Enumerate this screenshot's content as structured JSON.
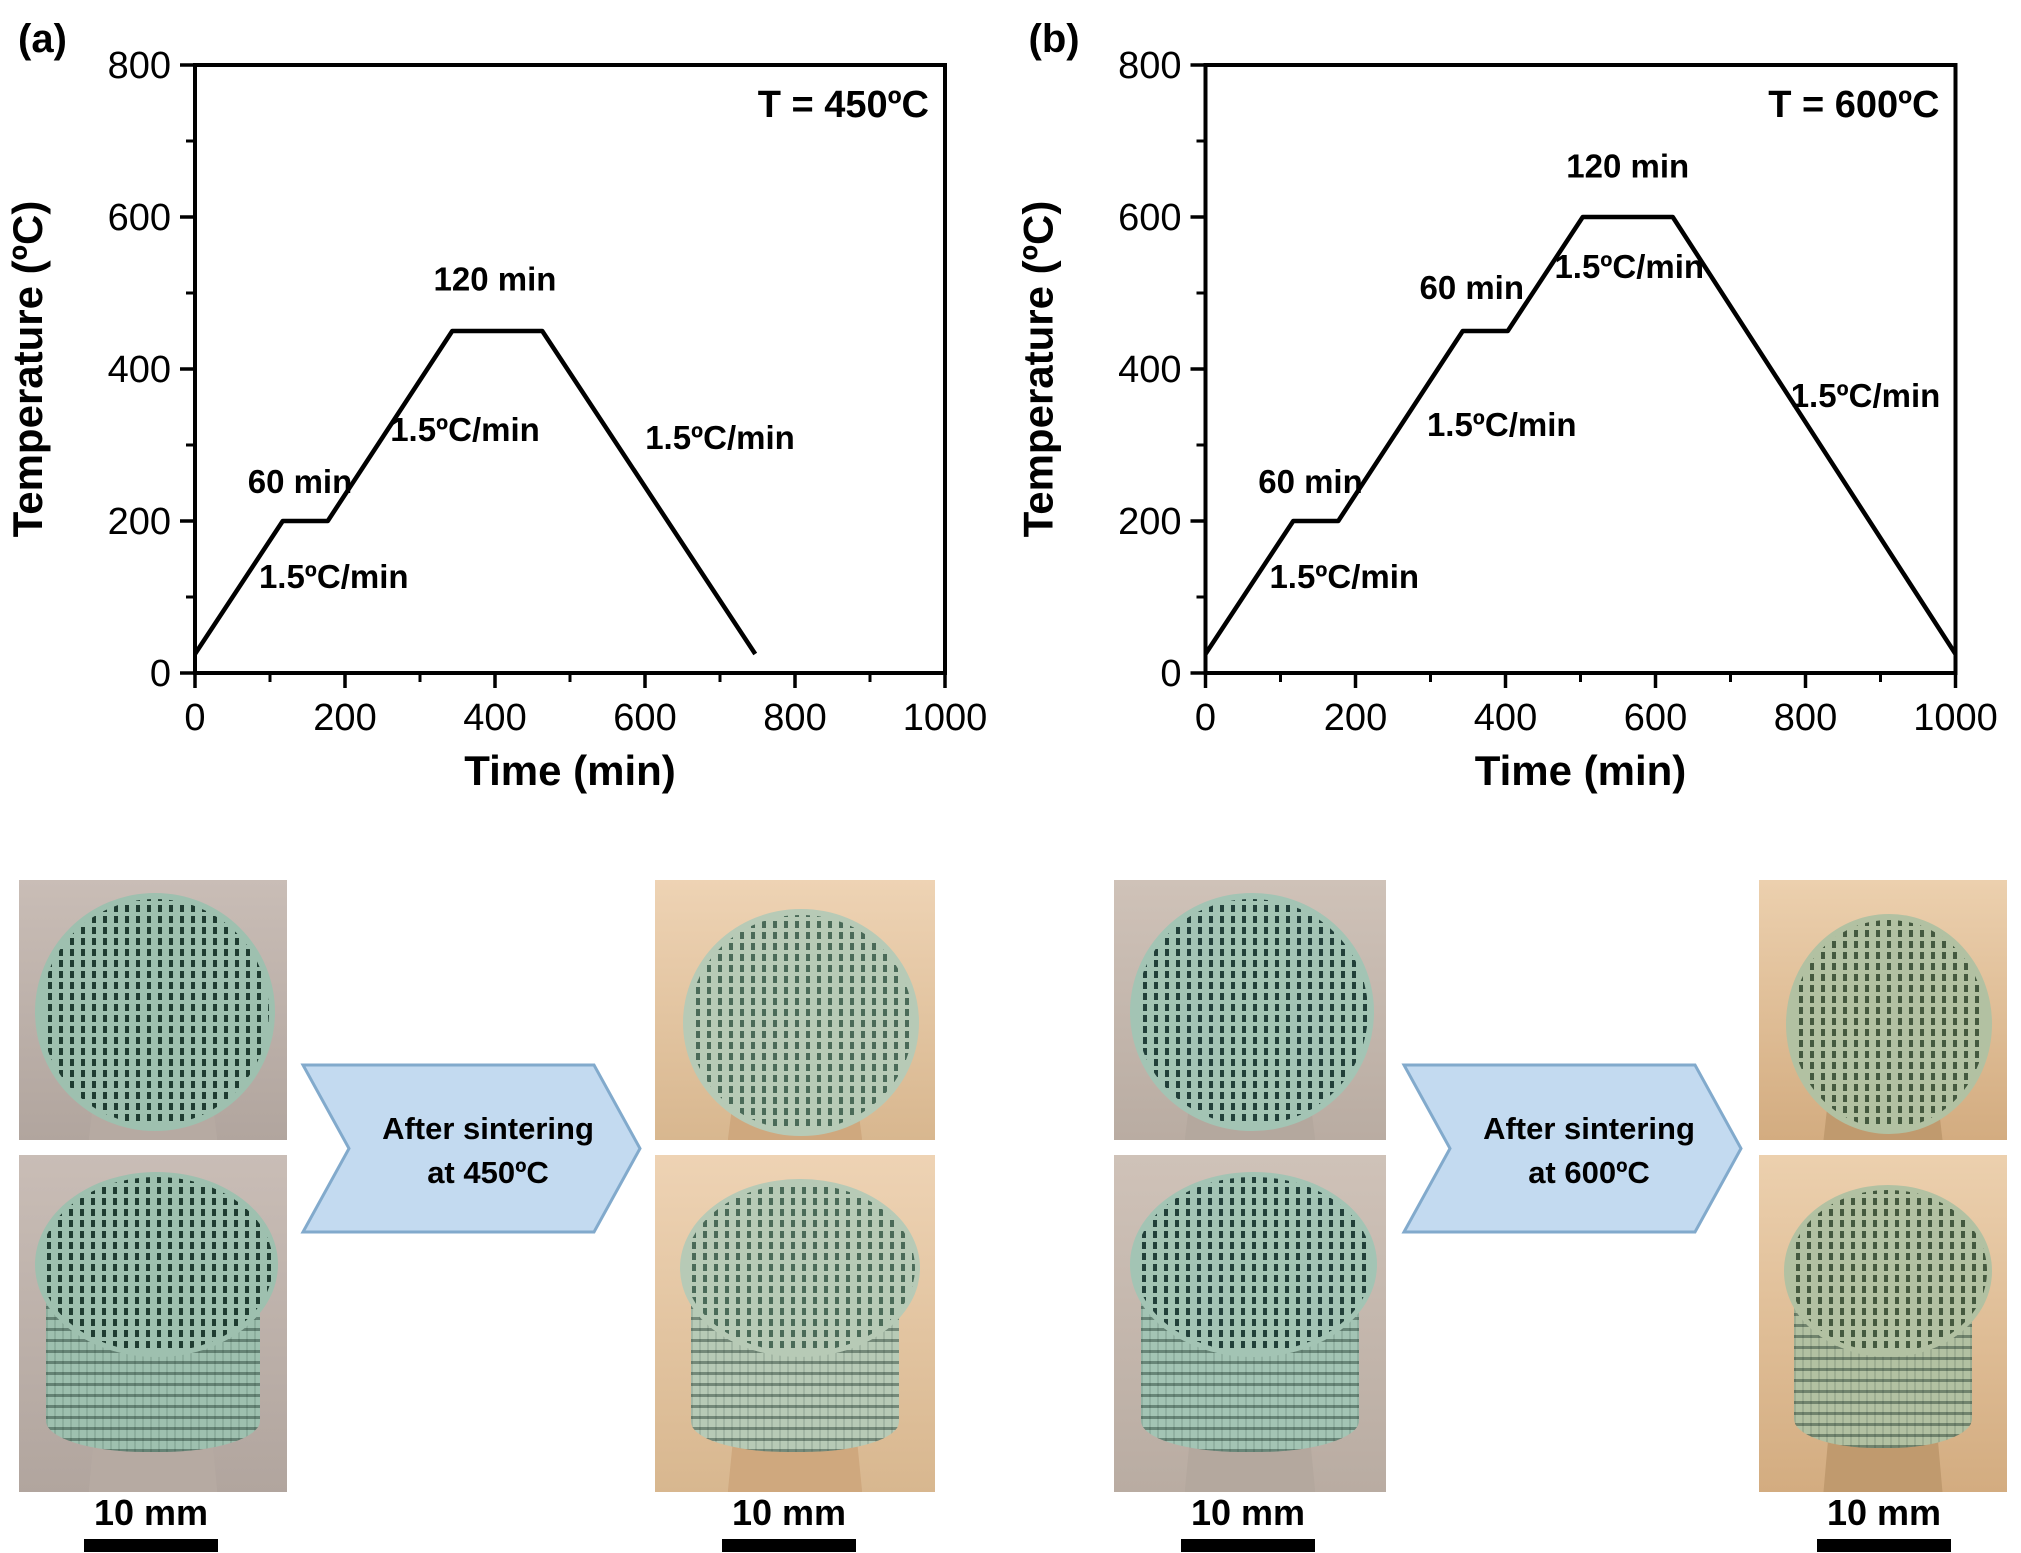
{
  "chart_data": [
    {
      "type": "line",
      "panel_label": "(a)",
      "title": "T = 450ºC",
      "xlabel": "Time (min)",
      "ylabel": "Temperature (ºC)",
      "xlim": [
        0,
        1000
      ],
      "ylim": [
        0,
        800
      ],
      "x_major_ticks": [
        0,
        200,
        400,
        600,
        800,
        1000
      ],
      "x_minor_ticks": [
        100,
        300,
        500,
        700,
        900
      ],
      "y_major_ticks": [
        0,
        200,
        400,
        600,
        800
      ],
      "y_minor_ticks": [
        100,
        300,
        500,
        700
      ],
      "grid": false,
      "legend": "none",
      "series": [
        {
          "name": "sintering-profile-450C",
          "color": "#000000",
          "points": [
            [
              0,
              25
            ],
            [
              117,
              200
            ],
            [
              177,
              200
            ],
            [
              343,
              450
            ],
            [
              463,
              450
            ],
            [
              747,
              25
            ]
          ]
        }
      ],
      "annotations": [
        {
          "text": "1.5ºC/min",
          "x": 185,
          "y": 112
        },
        {
          "text": "60 min",
          "x": 140,
          "y": 237
        },
        {
          "text": "1.5ºC/min",
          "x": 360,
          "y": 305
        },
        {
          "text": "120 min",
          "x": 400,
          "y": 503
        },
        {
          "text": "1.5ºC/min",
          "x": 700,
          "y": 295
        }
      ]
    },
    {
      "type": "line",
      "panel_label": "(b)",
      "title": "T = 600ºC",
      "xlabel": "Time (min)",
      "ylabel": "Temperature (ºC)",
      "xlim": [
        0,
        1000
      ],
      "ylim": [
        0,
        800
      ],
      "x_major_ticks": [
        0,
        200,
        400,
        600,
        800,
        1000
      ],
      "x_minor_ticks": [
        100,
        300,
        500,
        700,
        900
      ],
      "y_major_ticks": [
        0,
        200,
        400,
        600,
        800
      ],
      "y_minor_ticks": [
        100,
        300,
        500,
        700
      ],
      "grid": false,
      "legend": "none",
      "series": [
        {
          "name": "sintering-profile-600C",
          "color": "#000000",
          "points": [
            [
              0,
              25
            ],
            [
              117,
              200
            ],
            [
              177,
              200
            ],
            [
              343,
              450
            ],
            [
              403,
              450
            ],
            [
              503,
              600
            ],
            [
              623,
              600
            ],
            [
              1000,
              25
            ]
          ]
        }
      ],
      "annotations": [
        {
          "text": "1.5ºC/min",
          "x": 185,
          "y": 112
        },
        {
          "text": "60 min",
          "x": 140,
          "y": 237
        },
        {
          "text": "1.5ºC/min",
          "x": 395,
          "y": 312
        },
        {
          "text": "60 min",
          "x": 355,
          "y": 492
        },
        {
          "text": "1.5ºC/min",
          "x": 565,
          "y": 520
        },
        {
          "text": "120 min",
          "x": 563,
          "y": 652
        },
        {
          "text": "1.5ºC/min",
          "x": 880,
          "y": 350
        }
      ]
    }
  ],
  "process": {
    "groups": [
      {
        "arrow": {
          "line1": "After sintering",
          "line2": "at 450ºC"
        }
      },
      {
        "arrow": {
          "line1": "After sintering",
          "line2": "at 600ºC"
        }
      }
    ],
    "scale_bars": [
      "10 mm",
      "10 mm",
      "10 mm",
      "10 mm"
    ]
  },
  "colors": {
    "line": "#000000",
    "arrow_fill": "#c3daf0",
    "arrow_stroke": "#82aacc",
    "scalebar": "#000000",
    "photos": [
      {
        "bg_top": "#c9bdb6",
        "bg_bottom": "#b1a59e",
        "pedestal": "#b6aaa2",
        "strand": "#9ec0af",
        "slot": "#1f3c31"
      },
      {
        "bg_top": "#eed3b4",
        "bg_bottom": "#d8b78f",
        "pedestal": "#cfa87e",
        "strand": "#b7cab6",
        "slot": "#4a6a58"
      },
      {
        "bg_top": "#cfc2b8",
        "bg_bottom": "#b9aca2",
        "pedestal": "#b4a89e",
        "strand": "#a3c4b4",
        "slot": "#22403a"
      },
      {
        "bg_top": "#ecd0ae",
        "bg_bottom": "#d3ac80",
        "pedestal": "#c09a6e",
        "strand": "#b2c1a2",
        "slot": "#44593f"
      }
    ]
  }
}
